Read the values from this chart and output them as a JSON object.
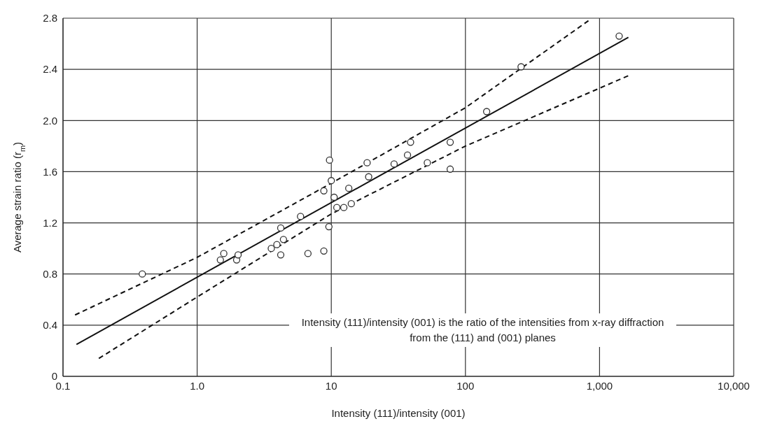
{
  "chart_data": {
    "type": "scatter",
    "xlabel": "Intensity (111)/intensity (001)",
    "ylabel": "Average strain ratio (r$_{m}$)",
    "log": "x",
    "grid": true,
    "marker": "circle",
    "xlim": [
      0.1,
      10000
    ],
    "xticks": [
      0.1,
      {
        "value": 1,
        "label": "1.0"
      },
      10,
      100,
      {
        "value": 1000,
        "label": "1,000"
      },
      {
        "value": 10000,
        "label": "10,000"
      }
    ],
    "ylim": [
      0,
      2.8
    ],
    "yticks": [
      0,
      0.4,
      0.8,
      1.2,
      1.6,
      {
        "value": 2,
        "label": "2.0"
      },
      2.4,
      2.8
    ],
    "annotations": [
      "Intensity (111)/intensity (001) is the ratio of the intensities from x-ray diffraction from the (111) and (001) planes"
    ],
    "series": [
      {
        "color": "#333333",
        "x": [
          0.39,
          1.49,
          1.58,
          1.97,
          2.02,
          3.57,
          3.93,
          4.2,
          4.2,
          4.4,
          5.9,
          6.7,
          8.8,
          9.6,
          9.7,
          8.8,
          10.0,
          10.5,
          11.0,
          12.4,
          14.1,
          13.5,
          19.0,
          18.5,
          29.4,
          37,
          39,
          52,
          77,
          77,
          144,
          260,
          1400
        ],
        "values": [
          0.8,
          0.91,
          0.96,
          0.91,
          0.95,
          1.0,
          1.03,
          0.95,
          1.16,
          1.07,
          1.25,
          0.96,
          0.98,
          1.17,
          1.69,
          1.45,
          1.53,
          1.4,
          1.32,
          1.32,
          1.35,
          1.47,
          1.56,
          1.67,
          1.66,
          1.73,
          1.83,
          1.67,
          1.83,
          1.62,
          2.07,
          2.42,
          2.66
        ]
      },
      {
        "type": "line",
        "color": "#111111",
        "line_style": "solid",
        "marker": "none",
        "x": [
          0.126,
          1640
        ],
        "values": [
          0.25,
          2.65
        ]
      },
      {
        "type": "line",
        "color": "#111111",
        "line_style": "dashed",
        "marker": "none",
        "x": [
          0.123,
          1,
          10,
          100,
          826
        ],
        "values": [
          0.48,
          0.93,
          1.51,
          2.1,
          2.78
        ]
      },
      {
        "type": "line",
        "color": "#111111",
        "line_style": "dashed",
        "marker": "none",
        "x": [
          0.185,
          1,
          10,
          100,
          1640
        ],
        "values": [
          0.14,
          0.62,
          1.27,
          1.8,
          2.35
        ]
      }
    ]
  }
}
